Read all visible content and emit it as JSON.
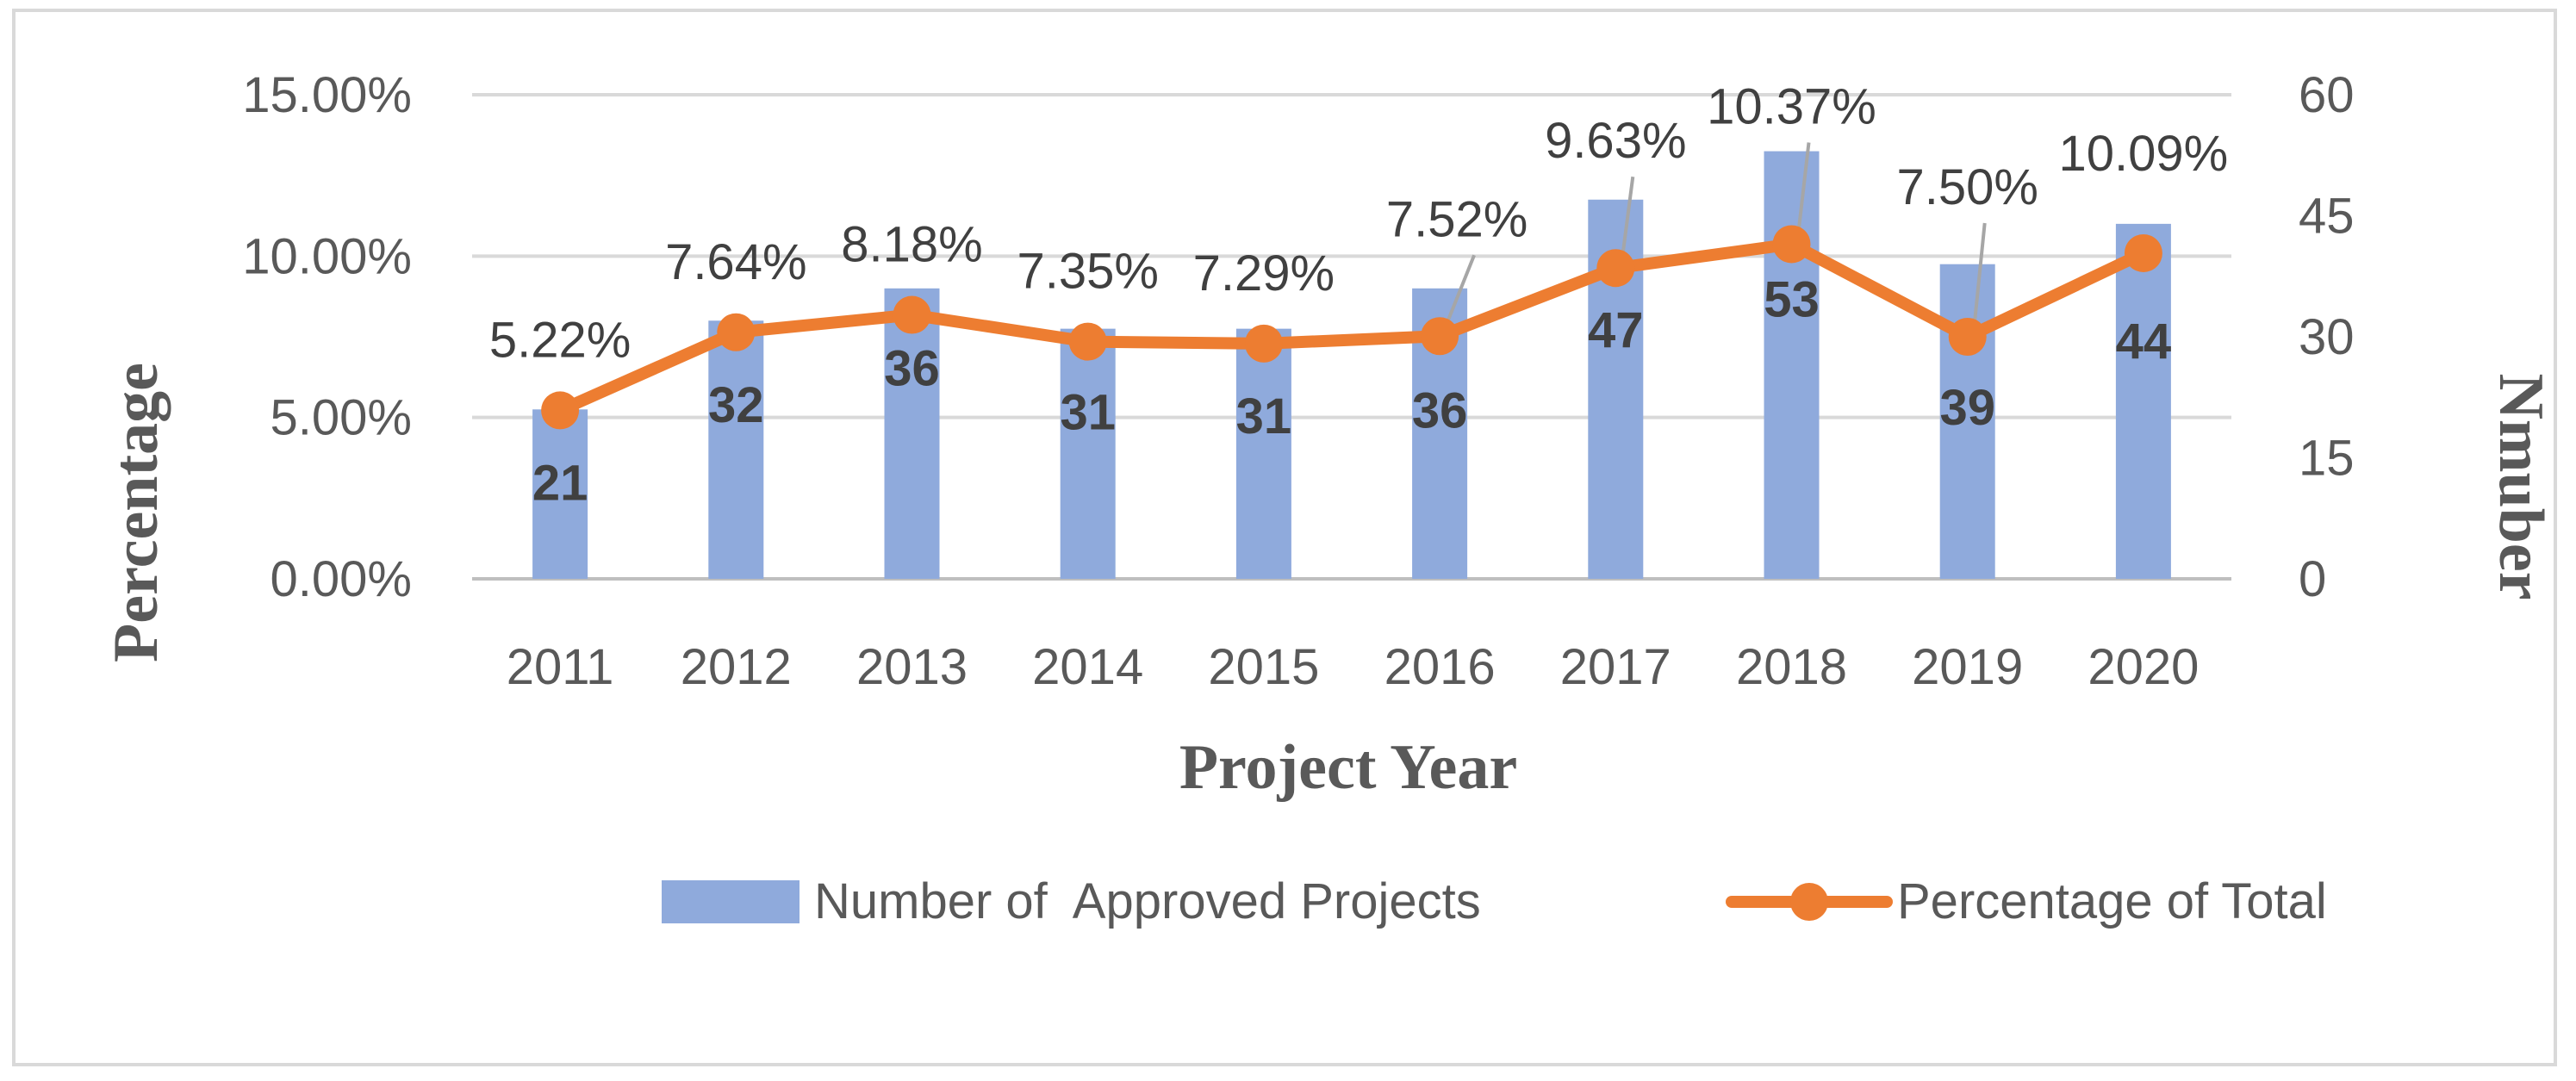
{
  "chart_data": {
    "type": "bar",
    "categories": [
      "2011",
      "2012",
      "2013",
      "2014",
      "2015",
      "2016",
      "2017",
      "2018",
      "2019",
      "2020"
    ],
    "series": [
      {
        "name": "Number of  Approved Projects",
        "type": "bar",
        "axis": "right",
        "color": "#8faadc",
        "values": [
          21,
          32,
          36,
          31,
          31,
          36,
          47,
          53,
          39,
          44
        ],
        "labels": [
          "21",
          "32",
          "36",
          "31",
          "31",
          "36",
          "47",
          "53",
          "39",
          "44"
        ]
      },
      {
        "name": "Percentage of Total",
        "type": "line",
        "axis": "left",
        "color": "#ed7d31",
        "values": [
          5.22,
          7.64,
          8.18,
          7.35,
          7.29,
          7.52,
          9.63,
          10.37,
          7.5,
          10.09
        ],
        "labels": [
          "5.22%",
          "7.64%",
          "8.18%",
          "7.35%",
          "7.29%",
          "7.52%",
          "9.63%",
          "10.37%",
          "7.50%",
          "10.09%"
        ]
      }
    ],
    "xlabel": "Project Year",
    "ylabel_left": "Percentage",
    "ylabel_right": "Nmuber",
    "ylim_left": [
      0,
      15
    ],
    "yticks_left": [
      "0.00%",
      "5.00%",
      "10.00%",
      "15.00%"
    ],
    "ylim_right": [
      0,
      60
    ],
    "yticks_right": [
      "0",
      "15",
      "30",
      "45",
      "60"
    ],
    "grid": true,
    "legend_position": "bottom"
  }
}
